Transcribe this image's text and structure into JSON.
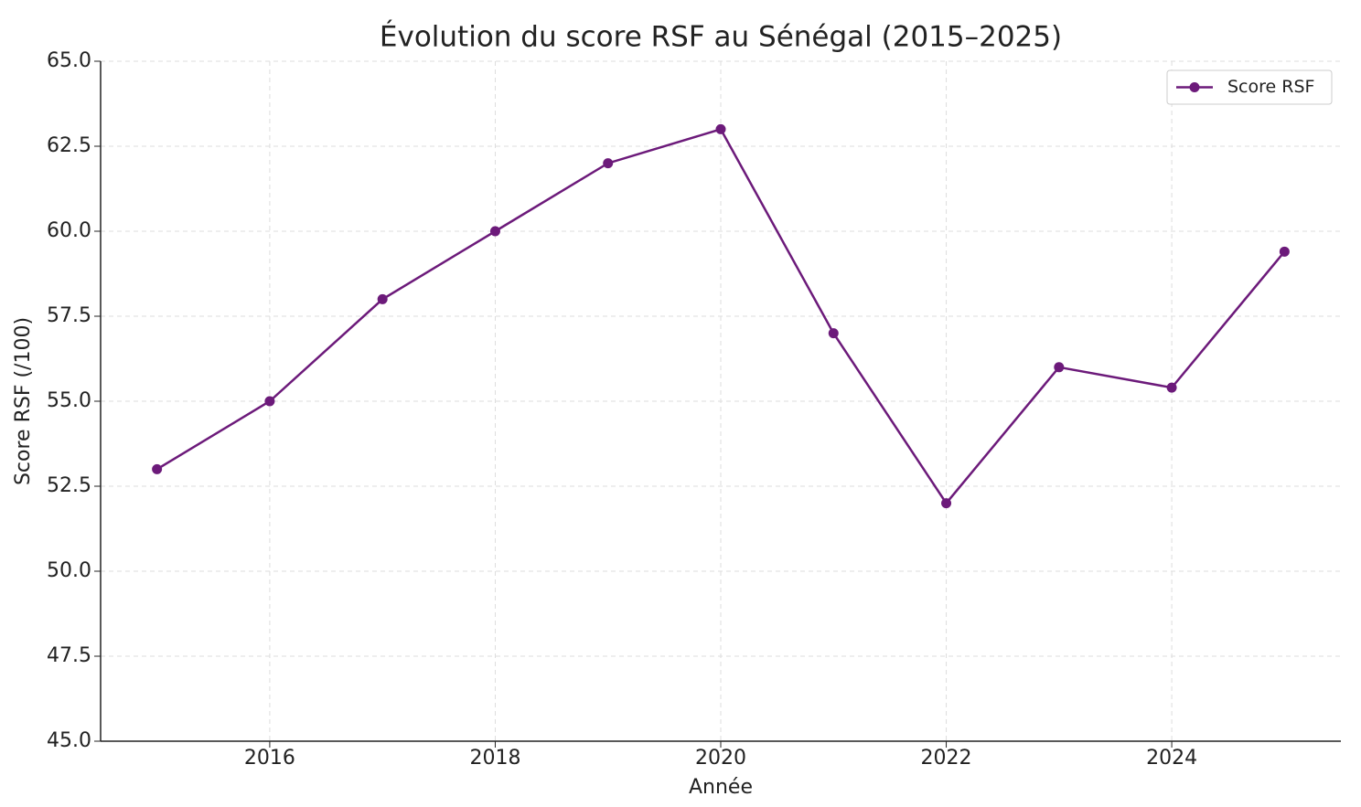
{
  "chart_data": {
    "type": "line",
    "title": "Évolution du score RSF au Sénégal (2015–2025)",
    "xlabel": "Année",
    "ylabel": "Score RSF (/100)",
    "x": [
      2015,
      2016,
      2017,
      2018,
      2019,
      2020,
      2021,
      2022,
      2023,
      2024,
      2025
    ],
    "series": [
      {
        "name": "Score RSF",
        "color": "#6c1a7a",
        "values": [
          53,
          55,
          58,
          60,
          62,
          63,
          57,
          52,
          56,
          55.4,
          59.4
        ]
      }
    ],
    "xlim": [
      2014.5,
      2025.5
    ],
    "xticks": [
      2016,
      2018,
      2020,
      2022,
      2024
    ],
    "ylim": [
      45,
      65
    ],
    "yticks": [
      {
        "value": 45,
        "label": "45.0"
      },
      {
        "value": 47.5,
        "label": "47.5"
      },
      {
        "value": 50,
        "label": "50.0"
      },
      {
        "value": 52.5,
        "label": "52.5"
      },
      {
        "value": 55,
        "label": "55.0"
      },
      {
        "value": 57.5,
        "label": "57.5"
      },
      {
        "value": 60,
        "label": "60.0"
      },
      {
        "value": 62.5,
        "label": "62.5"
      },
      {
        "value": 65,
        "label": "65.0"
      }
    ],
    "grid": true,
    "legend": "upper right"
  }
}
